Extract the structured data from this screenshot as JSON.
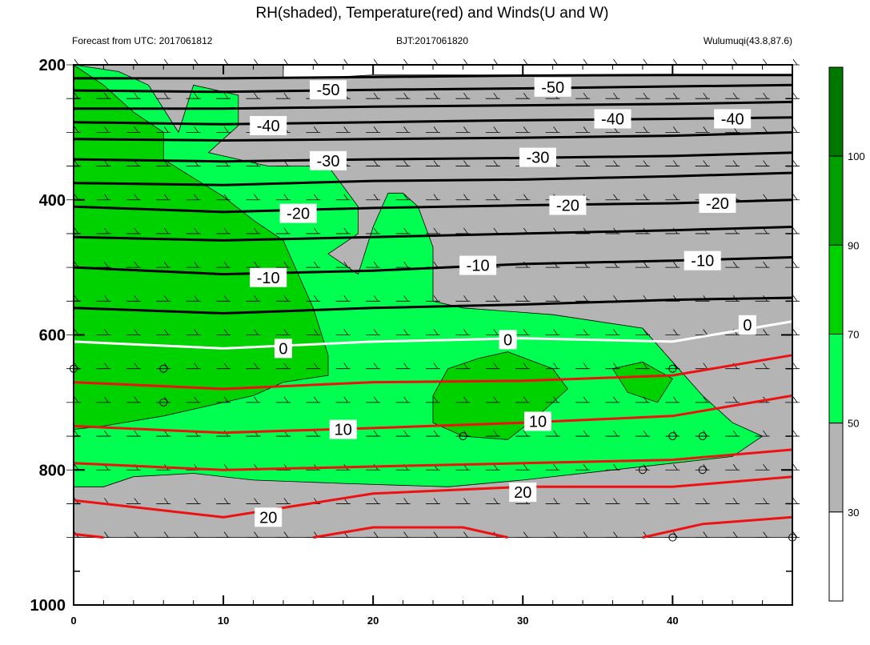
{
  "chart_data": {
    "type": "heatmap",
    "title": "RH(shaded), Temperature(red) and Winds(U and W)",
    "subtitle_left": "Forecast from UTC: 2017061812",
    "subtitle_center": "BJT:2017061820",
    "subtitle_right": "Wulumuqi(43.8,87.6)",
    "x_axis": {
      "range": [
        0,
        48
      ],
      "ticks": [
        "0",
        "10",
        "20",
        "30",
        "40"
      ]
    },
    "y_axis": {
      "range": [
        200,
        1000
      ],
      "reversed": true,
      "ticks": [
        "200",
        "400",
        "600",
        "800",
        "1000"
      ]
    },
    "colorbar": {
      "labels": [
        "30",
        "50",
        "70",
        "90",
        "100"
      ],
      "levels": [
        {
          "from": 0,
          "to": 30,
          "color": "#ffffff"
        },
        {
          "from": 30,
          "to": 50,
          "color": "#b4b4b4"
        },
        {
          "from": 50,
          "to": 70,
          "color": "#00ff50"
        },
        {
          "from": 70,
          "to": 90,
          "color": "#00d200"
        },
        {
          "from": 90,
          "to": 100,
          "color": "#00a000"
        },
        {
          "from": 100,
          "to": 110,
          "color": "#007800"
        }
      ]
    },
    "rh_contours": {
      "gray": [
        [
          [
            0,
            200
          ],
          [
            14,
            200
          ],
          [
            14,
            220
          ],
          [
            16,
            220
          ],
          [
            20,
            215
          ],
          [
            28,
            215
          ],
          [
            34,
            215
          ],
          [
            40,
            215
          ],
          [
            48,
            215
          ],
          [
            48,
            900
          ],
          [
            0,
            900
          ]
        ]
      ],
      "bright_green": [
        [
          [
            0,
            200
          ],
          [
            3,
            210
          ],
          [
            5,
            230
          ],
          [
            7,
            300
          ],
          [
            8,
            230
          ],
          [
            11,
            245
          ],
          [
            11,
            290
          ],
          [
            9,
            330
          ],
          [
            13,
            350
          ],
          [
            17,
            350
          ],
          [
            19,
            410
          ],
          [
            19,
            450
          ],
          [
            17,
            480
          ],
          [
            19,
            510
          ],
          [
            20,
            440
          ],
          [
            21,
            390
          ],
          [
            22,
            390
          ],
          [
            23,
            410
          ],
          [
            24,
            470
          ],
          [
            24,
            550
          ],
          [
            26,
            560
          ],
          [
            32,
            570
          ],
          [
            38,
            590
          ],
          [
            40,
            640
          ],
          [
            42,
            690
          ],
          [
            44,
            730
          ],
          [
            46,
            750
          ],
          [
            44,
            780
          ],
          [
            40,
            790
          ],
          [
            36,
            800
          ],
          [
            30,
            815
          ],
          [
            25,
            825
          ],
          [
            18,
            820
          ],
          [
            12,
            815
          ],
          [
            8,
            805
          ],
          [
            4,
            810
          ],
          [
            2,
            825
          ],
          [
            0,
            825
          ]
        ]
      ],
      "medium_green": [
        [
          [
            0,
            200
          ],
          [
            2,
            230
          ],
          [
            4,
            270
          ],
          [
            6,
            300
          ],
          [
            6,
            340
          ],
          [
            10,
            395
          ],
          [
            12,
            430
          ],
          [
            14,
            460
          ],
          [
            15,
            510
          ],
          [
            16,
            560
          ],
          [
            17,
            630
          ],
          [
            17,
            660
          ],
          [
            14,
            670
          ],
          [
            12,
            690
          ],
          [
            10,
            700
          ],
          [
            6,
            720
          ],
          [
            2,
            735
          ],
          [
            0,
            740
          ]
        ],
        [
          [
            25,
            650
          ],
          [
            27,
            635
          ],
          [
            29,
            625
          ],
          [
            32,
            650
          ],
          [
            33,
            680
          ],
          [
            31,
            720
          ],
          [
            29,
            755
          ],
          [
            26,
            750
          ],
          [
            24,
            730
          ],
          [
            24,
            690
          ]
        ],
        [
          [
            36,
            650
          ],
          [
            38,
            640
          ],
          [
            40,
            665
          ],
          [
            39,
            700
          ],
          [
            37,
            685
          ]
        ]
      ]
    },
    "temperature_red": [
      {
        "label": "",
        "points": [
          [
            0,
            670
          ],
          [
            10,
            680
          ],
          [
            20,
            670
          ],
          [
            30,
            668
          ],
          [
            40,
            660
          ],
          [
            48,
            630
          ]
        ]
      },
      {
        "label": "10",
        "points": [
          [
            0,
            735
          ],
          [
            10,
            745
          ],
          [
            20,
            738
          ],
          [
            30,
            730
          ],
          [
            40,
            720
          ],
          [
            48,
            690
          ]
        ]
      },
      {
        "label": "",
        "points": [
          [
            0,
            790
          ],
          [
            10,
            800
          ],
          [
            20,
            795
          ],
          [
            30,
            790
          ],
          [
            40,
            785
          ],
          [
            48,
            770
          ]
        ]
      },
      {
        "label": "20",
        "points": [
          [
            0,
            845
          ],
          [
            10,
            870
          ],
          [
            20,
            835
          ],
          [
            30,
            825
          ],
          [
            40,
            825
          ],
          [
            48,
            810
          ]
        ]
      },
      {
        "label": "",
        "points": [
          [
            0,
            895
          ],
          [
            2,
            900
          ]
        ]
      },
      {
        "label": "",
        "points": [
          [
            16,
            900
          ],
          [
            20,
            885
          ],
          [
            26,
            885
          ],
          [
            29,
            900
          ]
        ]
      },
      {
        "label": "",
        "points": [
          [
            38,
            900
          ],
          [
            42,
            880
          ],
          [
            48,
            870
          ]
        ]
      }
    ],
    "isotherm_zero": {
      "label": "0",
      "points": [
        [
          0,
          610
        ],
        [
          10,
          620
        ],
        [
          20,
          610
        ],
        [
          30,
          605
        ],
        [
          40,
          610
        ],
        [
          48,
          580
        ]
      ]
    },
    "temperature_black": [
      {
        "label": "",
        "points": [
          [
            0,
            560
          ],
          [
            10,
            568
          ],
          [
            20,
            560
          ],
          [
            30,
            555
          ],
          [
            40,
            548
          ],
          [
            48,
            545
          ]
        ]
      },
      {
        "label": "-10",
        "points": [
          [
            0,
            500
          ],
          [
            10,
            510
          ],
          [
            20,
            505
          ],
          [
            30,
            495
          ],
          [
            40,
            490
          ],
          [
            48,
            485
          ]
        ]
      },
      {
        "label": "",
        "points": [
          [
            0,
            455
          ],
          [
            10,
            460
          ],
          [
            20,
            455
          ],
          [
            30,
            450
          ],
          [
            40,
            445
          ],
          [
            48,
            440
          ]
        ]
      },
      {
        "label": "-20",
        "points": [
          [
            0,
            410
          ],
          [
            10,
            418
          ],
          [
            20,
            412
          ],
          [
            30,
            408
          ],
          [
            40,
            405
          ],
          [
            48,
            400
          ]
        ]
      },
      {
        "label": "",
        "points": [
          [
            0,
            375
          ],
          [
            10,
            378
          ],
          [
            20,
            372
          ],
          [
            30,
            370
          ],
          [
            40,
            365
          ],
          [
            48,
            360
          ]
        ]
      },
      {
        "label": "-30",
        "points": [
          [
            0,
            340
          ],
          [
            10,
            343
          ],
          [
            20,
            340
          ],
          [
            30,
            338
          ],
          [
            40,
            335
          ],
          [
            48,
            330
          ]
        ]
      },
      {
        "label": "",
        "points": [
          [
            0,
            310
          ],
          [
            10,
            312
          ],
          [
            20,
            310
          ],
          [
            30,
            308
          ],
          [
            40,
            305
          ],
          [
            48,
            300
          ]
        ]
      },
      {
        "label": "-40",
        "points": [
          [
            0,
            285
          ],
          [
            10,
            288
          ],
          [
            20,
            285
          ],
          [
            30,
            282
          ],
          [
            40,
            280
          ],
          [
            48,
            278
          ]
        ]
      },
      {
        "label": "",
        "points": [
          [
            0,
            265
          ],
          [
            10,
            265
          ],
          [
            20,
            262
          ],
          [
            30,
            260
          ],
          [
            40,
            258
          ],
          [
            48,
            255
          ]
        ]
      },
      {
        "label": "-50",
        "points": [
          [
            0,
            238
          ],
          [
            10,
            240
          ],
          [
            20,
            237
          ],
          [
            30,
            235
          ],
          [
            40,
            232
          ],
          [
            48,
            230
          ]
        ]
      },
      {
        "label": "",
        "points": [
          [
            0,
            220
          ],
          [
            10,
            220
          ],
          [
            20,
            218
          ],
          [
            30,
            216
          ],
          [
            40,
            215
          ],
          [
            48,
            215
          ]
        ]
      }
    ],
    "contour_labels": [
      {
        "text": "-50",
        "x": 17,
        "y": 237
      },
      {
        "text": "-50",
        "x": 32,
        "y": 233
      },
      {
        "text": "-40",
        "x": 13,
        "y": 290
      },
      {
        "text": "-40",
        "x": 36,
        "y": 280
      },
      {
        "text": "-40",
        "x": 44,
        "y": 280
      },
      {
        "text": "-30",
        "x": 17,
        "y": 342
      },
      {
        "text": "-30",
        "x": 31,
        "y": 337
      },
      {
        "text": "-20",
        "x": 15,
        "y": 420
      },
      {
        "text": "-20",
        "x": 33,
        "y": 408
      },
      {
        "text": "-20",
        "x": 43,
        "y": 405
      },
      {
        "text": "-10",
        "x": 13,
        "y": 515
      },
      {
        "text": "-10",
        "x": 27,
        "y": 497
      },
      {
        "text": "-10",
        "x": 42,
        "y": 490
      },
      {
        "text": "0",
        "x": 14,
        "y": 620
      },
      {
        "text": "0",
        "x": 29,
        "y": 607
      },
      {
        "text": "0",
        "x": 45,
        "y": 585
      },
      {
        "text": "10",
        "x": 18,
        "y": 740
      },
      {
        "text": "10",
        "x": 31,
        "y": 728
      },
      {
        "text": "20",
        "x": 13,
        "y": 870
      },
      {
        "text": "20",
        "x": 30,
        "y": 833
      }
    ],
    "wind_barbs": {
      "x_start": 0,
      "x_step": 2,
      "x_end": 48,
      "levels": [
        200,
        250,
        300,
        350,
        400,
        450,
        500,
        550,
        600,
        650,
        700,
        750,
        800,
        850,
        900
      ]
    },
    "calm_circles": [
      [
        0,
        650
      ],
      [
        6,
        650
      ],
      [
        6,
        700
      ],
      [
        26,
        750
      ],
      [
        40,
        650
      ],
      [
        40,
        750
      ],
      [
        42,
        750
      ],
      [
        38,
        800
      ],
      [
        42,
        800
      ],
      [
        40,
        900
      ],
      [
        48,
        900
      ]
    ]
  }
}
